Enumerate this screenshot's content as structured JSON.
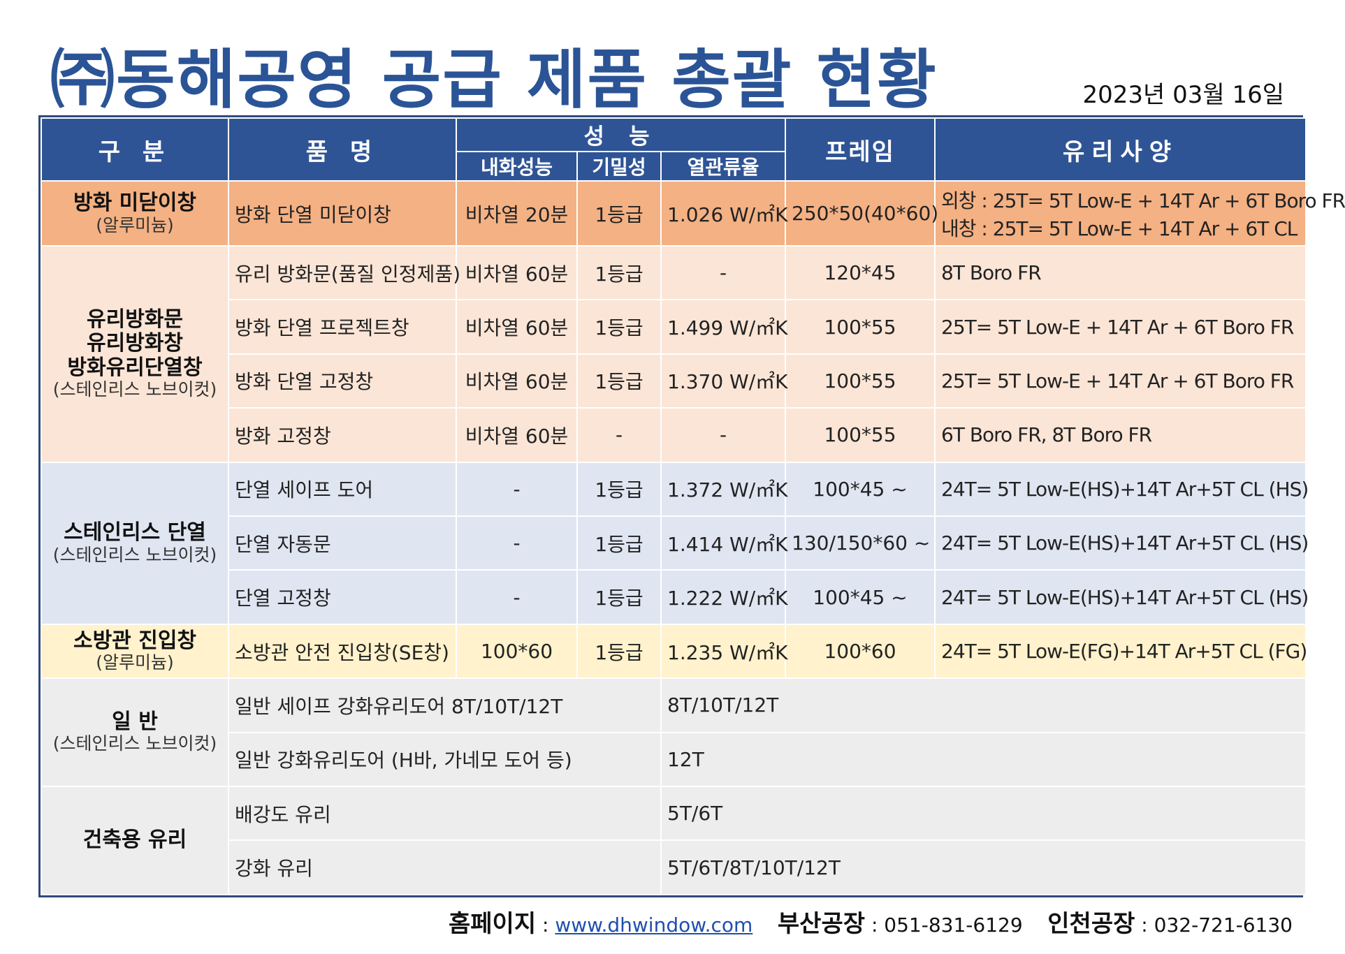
{
  "title": "㈜동해공영 공급 제품 총괄 현황",
  "date": "2023년  03월  16일",
  "header": {
    "category": "구 분",
    "product": "품 명",
    "performance": "성 능",
    "fire": "내화성능",
    "air": "기밀성",
    "thermal": "열관류율",
    "frame": "프레임",
    "glass": "유리사양"
  },
  "groups": {
    "g1": {
      "main": "방화 미닫이창",
      "sub": "(알루미늄)"
    },
    "g2": {
      "main1": "유리방화문",
      "main2": "유리방화창",
      "main3": "방화유리단열창",
      "sub": "(스테인리스 노브이컷)"
    },
    "g3": {
      "main": "스테인리스 단열",
      "sub": "(스테인리스 노브이컷)"
    },
    "g4": {
      "main": "소방관 진입창",
      "sub": "(알루미늄)"
    },
    "g5": {
      "main": "일 반",
      "sub": "(스테인리스 노브이컷)"
    },
    "g6": {
      "main": "건축용 유리"
    }
  },
  "rows": [
    {
      "product": "방화 단열 미닫이창",
      "fire": "비차열 20분",
      "air": "1등급",
      "thermal": "1.026 W/㎡K",
      "frame": "250*50(40*60)",
      "glass": "외창 : 25T= 5T Low-E + 14T Ar + 6T Boro FR",
      "glass2": "내창 : 25T= 5T Low-E + 14T Ar + 6T CL"
    },
    {
      "product": "유리 방화문(품질 인정제품)",
      "fire": "비차열 60분",
      "air": "1등급",
      "thermal": "-",
      "frame": "120*45",
      "glass": "8T Boro FR"
    },
    {
      "product": "방화 단열 프로젝트창",
      "fire": "비차열 60분",
      "air": "1등급",
      "thermal": "1.499 W/㎡K",
      "frame": "100*55",
      "glass": "25T= 5T Low-E + 14T Ar + 6T Boro FR"
    },
    {
      "product": "방화 단열 고정창",
      "fire": "비차열 60분",
      "air": "1등급",
      "thermal": "1.370 W/㎡K",
      "frame": "100*55",
      "glass": "25T= 5T Low-E + 14T Ar + 6T Boro FR"
    },
    {
      "product": "방화 고정창",
      "fire": "비차열 60분",
      "air": "-",
      "thermal": "-",
      "frame": "100*55",
      "glass": "6T Boro FR, 8T Boro FR"
    },
    {
      "product": "단열 세이프 도어",
      "fire": "-",
      "air": "1등급",
      "thermal": "1.372 W/㎡K",
      "frame": "100*45 ~",
      "glass": "24T= 5T Low-E(HS)+14T Ar+5T CL (HS)"
    },
    {
      "product": "단열 자동문",
      "fire": "-",
      "air": "1등급",
      "thermal": "1.414 W/㎡K",
      "frame": "130/150*60 ~",
      "glass": "24T= 5T Low-E(HS)+14T Ar+5T CL (HS)"
    },
    {
      "product": "단열 고정창",
      "fire": "-",
      "air": "1등급",
      "thermal": "1.222 W/㎡K",
      "frame": "100*45 ~",
      "glass": "24T= 5T Low-E(HS)+14T Ar+5T CL (HS)"
    },
    {
      "product": "소방관 안전 진입창(SE창)",
      "fire": "100*60",
      "air": "1등급",
      "thermal": "1.235 W/㎡K",
      "frame": "100*60",
      "glass": "24T= 5T Low-E(FG)+14T Ar+5T CL (FG)"
    },
    {
      "product": "일반 세이프 강화유리도어 8T/10T/12T",
      "spec": "8T/10T/12T"
    },
    {
      "product": "일반 강화유리도어 (H바, 가네모 도어 등)",
      "spec": "12T"
    },
    {
      "product": "배강도 유리",
      "spec": "5T/6T"
    },
    {
      "product": "강화 유리",
      "spec": "5T/6T/8T/10T/12T"
    }
  ],
  "footer": {
    "homepage_label": "홈페이지",
    "homepage_url": "www.dhwindow.com",
    "busan_label": "부산공장",
    "busan_phone": "051-831-6129",
    "incheon_label": "인천공장",
    "incheon_phone": "032-721-6130"
  }
}
